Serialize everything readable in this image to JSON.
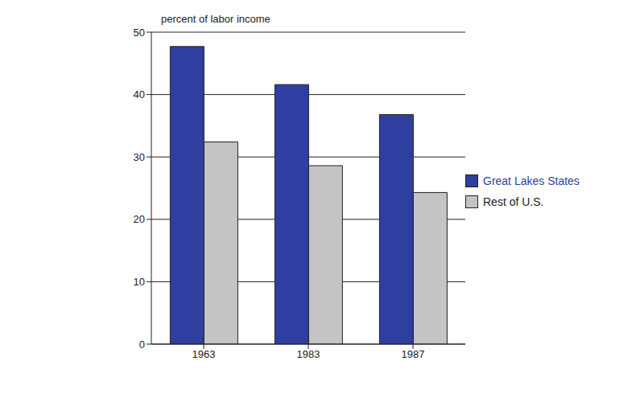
{
  "chart_data": {
    "type": "bar",
    "y_label": "percent of labor income",
    "categories": [
      "1963",
      "1983",
      "1987"
    ],
    "series": [
      {
        "name": "Great Lakes States",
        "color": "#2f3f9f",
        "values": [
          47.7,
          41.6,
          36.8
        ]
      },
      {
        "name": "Rest of U.S.",
        "color": "#c4c4c4",
        "values": [
          32.4,
          28.6,
          24.3
        ]
      }
    ],
    "ylim": [
      0,
      50
    ],
    "yticks": [
      0,
      10,
      20,
      30,
      40,
      50
    ],
    "grid": true,
    "legend": "right"
  }
}
